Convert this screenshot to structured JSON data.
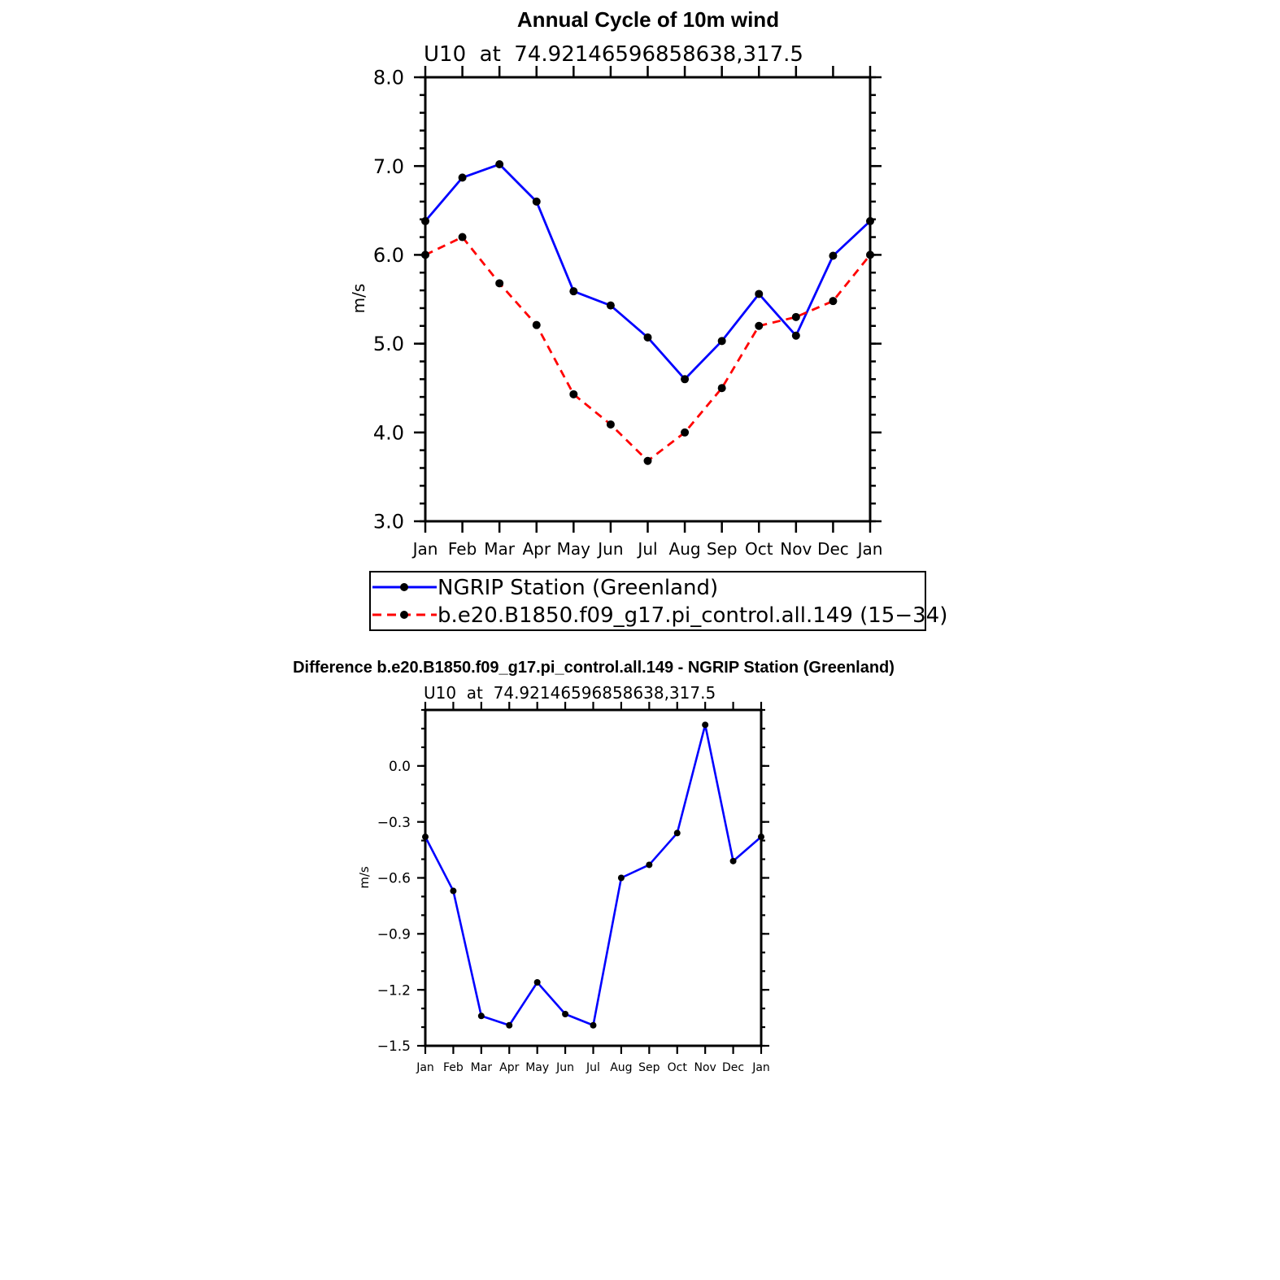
{
  "chart_data": [
    {
      "type": "line",
      "title": "Annual Cycle of 10m wind",
      "subtitle": "U10  at  74.92146596858638,317.5",
      "ylabel": "m/s",
      "xlabel": "",
      "categories": [
        "Jan",
        "Feb",
        "Mar",
        "Apr",
        "May",
        "Jun",
        "Jul",
        "Aug",
        "Sep",
        "Oct",
        "Nov",
        "Dec",
        "Jan"
      ],
      "ylim": [
        3.0,
        8.0
      ],
      "yticks": [
        "3.0",
        "4.0",
        "5.0",
        "6.0",
        "7.0",
        "8.0"
      ],
      "series": [
        {
          "name": "NGRIP Station (Greenland)",
          "color": "#0000ff",
          "dash": "solid",
          "values": [
            6.38,
            6.87,
            7.02,
            6.6,
            5.59,
            5.43,
            5.07,
            4.6,
            5.03,
            5.56,
            5.09,
            5.99,
            6.38
          ]
        },
        {
          "name": "b.e20.B1850.f09_g17.pi_control.all.149 (15−34)",
          "color": "#ff0000",
          "dash": "dashed",
          "values": [
            6.0,
            6.2,
            5.68,
            5.21,
            4.43,
            4.09,
            3.68,
            4.0,
            4.5,
            5.2,
            5.3,
            5.48,
            6.0
          ]
        }
      ],
      "legend": "below"
    },
    {
      "type": "line",
      "title": "Difference b.e20.B1850.f09_g17.pi_control.all.149 - NGRIP Station (Greenland)",
      "subtitle": "U10  at  74.92146596858638,317.5",
      "ylabel": "m/s",
      "xlabel": "",
      "categories": [
        "Jan",
        "Feb",
        "Mar",
        "Apr",
        "May",
        "Jun",
        "Jul",
        "Aug",
        "Sep",
        "Oct",
        "Nov",
        "Dec",
        "Jan"
      ],
      "ylim": [
        -1.5,
        0.3
      ],
      "yticks": [
        "0.0",
        "-0.3",
        "-0.6",
        "-0.9",
        "-1.2",
        "-1.5"
      ],
      "series": [
        {
          "color": "#0000ff",
          "dash": "solid",
          "values": [
            -0.38,
            -0.67,
            -1.34,
            -1.39,
            -1.16,
            -1.33,
            -1.39,
            -0.6,
            -0.53,
            -0.36,
            0.22,
            -0.51,
            -0.38
          ]
        }
      ]
    }
  ]
}
